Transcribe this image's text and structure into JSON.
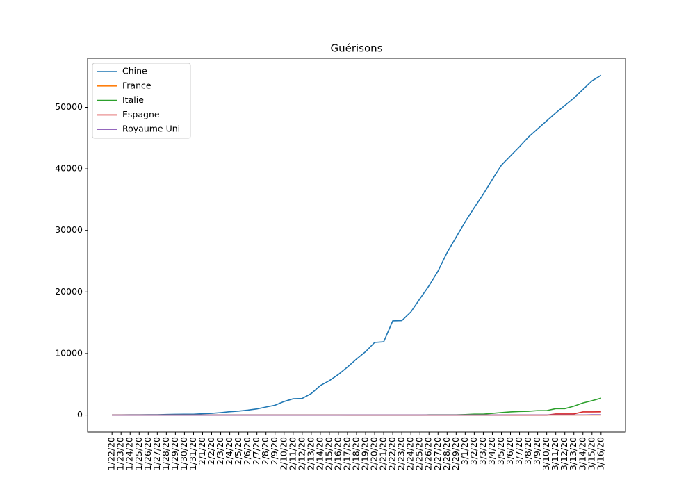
{
  "chart_data": {
    "type": "line",
    "title": "Guérisons",
    "categories": [
      "1/22/20",
      "1/23/20",
      "1/24/20",
      "1/25/20",
      "1/26/20",
      "1/27/20",
      "1/28/20",
      "1/29/20",
      "1/30/20",
      "1/31/20",
      "2/1/20",
      "2/2/20",
      "2/3/20",
      "2/4/20",
      "2/5/20",
      "2/6/20",
      "2/7/20",
      "2/8/20",
      "2/9/20",
      "2/10/20",
      "2/11/20",
      "2/12/20",
      "2/13/20",
      "2/14/20",
      "2/15/20",
      "2/16/20",
      "2/17/20",
      "2/18/20",
      "2/19/20",
      "2/20/20",
      "2/21/20",
      "2/22/20",
      "2/23/20",
      "2/24/20",
      "2/25/20",
      "2/26/20",
      "2/27/20",
      "2/28/20",
      "2/29/20",
      "3/1/20",
      "3/2/20",
      "3/3/20",
      "3/4/20",
      "3/5/20",
      "3/6/20",
      "3/7/20",
      "3/8/20",
      "3/9/20",
      "3/10/20",
      "3/11/20",
      "3/12/20",
      "3/13/20",
      "3/14/20",
      "3/15/20",
      "3/16/20"
    ],
    "series": [
      {
        "name": "Chine",
        "color": "#1f77b4",
        "values": [
          28,
          30,
          36,
          39,
          49,
          58,
          101,
          120,
          135,
          141,
          219,
          281,
          400,
          550,
          650,
          800,
          1000,
          1300,
          1600,
          2200,
          2650,
          2700,
          3500,
          4800,
          5600,
          6600,
          7800,
          9100,
          10300,
          11800,
          11900,
          15300,
          15350,
          16750,
          18900,
          21000,
          23400,
          26400,
          28900,
          31400,
          33700,
          35900,
          38300,
          40600,
          42100,
          43600,
          45200,
          46500,
          47800,
          49100,
          50300,
          51500,
          52900,
          54300,
          55195
        ]
      },
      {
        "name": "France",
        "color": "#ff7f0e",
        "values": [
          0,
          0,
          0,
          0,
          0,
          0,
          0,
          0,
          0,
          0,
          0,
          0,
          0,
          0,
          0,
          0,
          0,
          0,
          0,
          0,
          0,
          0,
          0,
          0,
          2,
          2,
          4,
          4,
          4,
          4,
          4,
          4,
          4,
          4,
          4,
          4,
          4,
          4,
          12,
          12,
          12,
          12,
          12,
          12,
          12,
          12,
          12,
          12,
          12,
          12,
          12,
          12,
          12,
          12,
          12
        ]
      },
      {
        "name": "Italie",
        "color": "#2ca02c",
        "values": [
          0,
          0,
          0,
          0,
          0,
          0,
          0,
          0,
          0,
          0,
          0,
          0,
          0,
          0,
          0,
          0,
          0,
          0,
          0,
          0,
          0,
          0,
          0,
          0,
          0,
          0,
          0,
          0,
          0,
          0,
          0,
          1,
          1,
          1,
          3,
          45,
          46,
          46,
          46,
          83,
          149,
          160,
          276,
          414,
          523,
          589,
          622,
          724,
          724,
          1045,
          1045,
          1439,
          1966,
          2335,
          2749
        ]
      },
      {
        "name": "Espagne",
        "color": "#d62728",
        "values": [
          0,
          0,
          0,
          0,
          0,
          0,
          0,
          0,
          0,
          0,
          0,
          0,
          0,
          0,
          0,
          0,
          0,
          0,
          0,
          0,
          0,
          0,
          0,
          0,
          2,
          2,
          2,
          2,
          2,
          2,
          2,
          2,
          2,
          2,
          2,
          2,
          2,
          2,
          2,
          2,
          2,
          2,
          2,
          2,
          2,
          2,
          2,
          2,
          2,
          183,
          183,
          193,
          517,
          517,
          530
        ]
      },
      {
        "name": "Royaume Uni",
        "color": "#9467bd",
        "values": [
          0,
          0,
          0,
          0,
          0,
          0,
          0,
          0,
          0,
          0,
          0,
          0,
          0,
          0,
          0,
          0,
          0,
          0,
          0,
          0,
          0,
          0,
          0,
          0,
          0,
          0,
          8,
          8,
          8,
          8,
          8,
          8,
          8,
          8,
          8,
          8,
          8,
          8,
          8,
          8,
          8,
          8,
          8,
          8,
          18,
          18,
          18,
          18,
          18,
          18,
          18,
          18,
          18,
          52,
          52
        ]
      }
    ],
    "ylim": [
      -2760,
      57955
    ],
    "yticks": [
      0,
      10000,
      20000,
      30000,
      40000,
      50000
    ],
    "legend": "upper left"
  }
}
